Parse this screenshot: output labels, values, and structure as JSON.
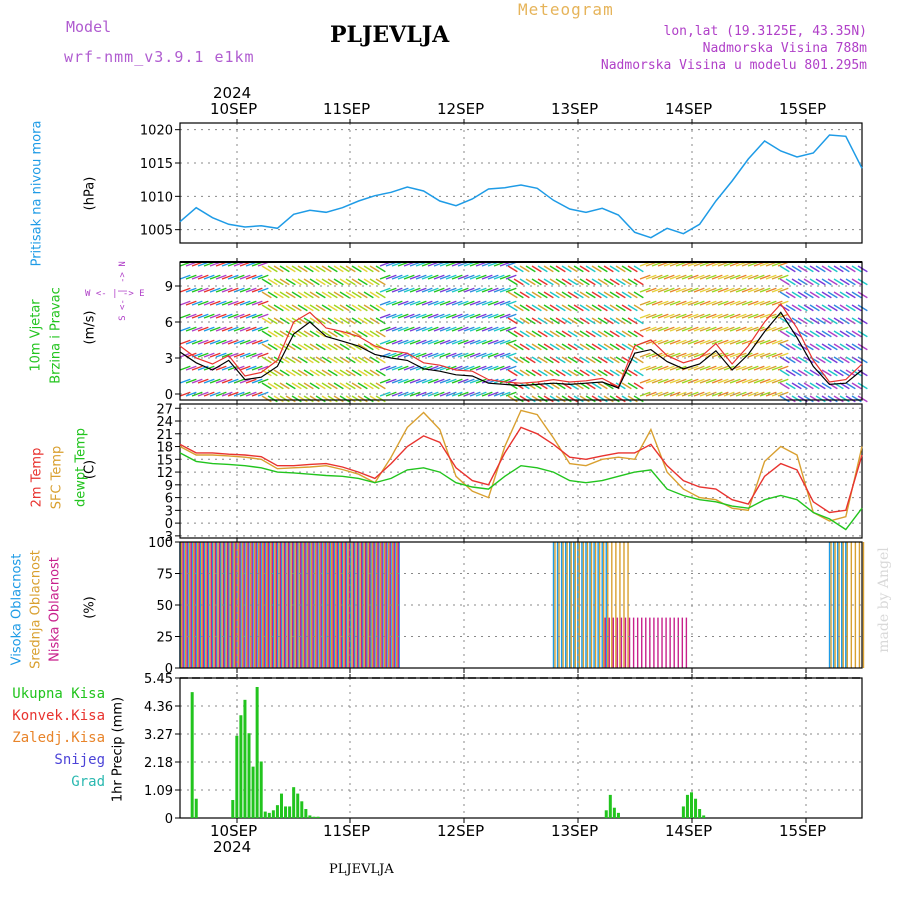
{
  "header": {
    "model_label": "Model",
    "model_value": "wrf-nmm_v3.9.1 e1km",
    "station": "PLJEVLJA",
    "meteogram": "Meteogram",
    "lonlat": "lon,lat (19.3125E, 43.35N)",
    "altitude": "Nadmorska Visina 788m",
    "model_altitude": "Nadmorska Visina u modelu 801.295m"
  },
  "footer": {
    "station": "PLJEVLJA",
    "credit": "made by Angel"
  },
  "axis": {
    "year": "2024",
    "days": [
      "10SEP",
      "11SEP",
      "12SEP",
      "13SEP",
      "14SEP",
      "15SEP"
    ]
  },
  "panels": {
    "pressure": {
      "title": "Pritisak na nivou mora",
      "unit": "(hPa)",
      "ticks": [
        "1020",
        "1015",
        "1010",
        "1005"
      ]
    },
    "wind": {
      "title1": "10m Vjetar",
      "title2": "Brzina i Pravac",
      "unit": "(m/s)",
      "compass": "W <- | -> E",
      "compass_ns": "S <- | -> N",
      "ticks": [
        "9",
        "6",
        "3",
        "0"
      ]
    },
    "temp": {
      "title1": "2m Temp",
      "title2": "SFC Temp",
      "title3": "dewpt Temp",
      "unit": "(C)",
      "ticks": [
        "27",
        "24",
        "21",
        "18",
        "15",
        "12",
        "9",
        "6",
        "3",
        "0",
        "-3"
      ]
    },
    "cloud": {
      "title1": "Visoka Oblacnost",
      "title2": "Srednja Oblacnost",
      "title3": "Niska Oblacnost",
      "unit": "(%)",
      "ticks": [
        "100",
        "75",
        "50",
        "25",
        "0"
      ]
    },
    "precip": {
      "legend": [
        "Ukupna Kisa",
        "Konvek.Kisa",
        "Zaledj.Kisa",
        "Snijeg",
        "Grad"
      ],
      "unit": "1hr Precip (mm)",
      "ticks": [
        "5.45",
        "4.36",
        "3.27",
        "2.18",
        "1.09",
        "0"
      ]
    }
  },
  "colors": {
    "pressure": "#1e9be6",
    "t2m": "#e8332f",
    "tsfc": "#d9a030",
    "dewpt": "#22c41e",
    "cloud_high": "#1e9be6",
    "cloud_mid": "#d9a030",
    "cloud_low": "#c8208c",
    "precip_total": "#22c41e",
    "precip_conv": "#e8332f",
    "precip_frz": "#e8842a",
    "precip_snow": "#4c44d8",
    "precip_grad": "#2ab8b0",
    "model_title": "#b05cd0",
    "meteogram_title": "#e6b45a",
    "info_text": "#b040c8"
  },
  "chart_data": [
    {
      "type": "line",
      "title": "Pritisak na nivou mora",
      "ylabel": "(hPa)",
      "ylim": [
        1003,
        1021
      ],
      "x_hours": [
        0,
        4,
        8,
        12,
        16,
        20,
        24,
        28,
        32,
        36,
        40,
        44,
        48,
        52,
        56,
        60,
        64,
        68,
        72,
        76,
        80,
        84,
        88,
        92,
        96,
        100,
        104,
        108,
        112,
        116,
        120,
        124,
        128,
        132,
        136,
        140,
        144,
        148,
        152,
        156,
        160,
        164,
        168
      ],
      "series": [
        {
          "values": [
            1006.2,
            1008.3,
            1006.8,
            1005.8,
            1005.4,
            1005.6,
            1005.2,
            1007.3,
            1007.9,
            1007.6,
            1008.3,
            1009.3,
            1010.1,
            1010.6,
            1011.4,
            1010.8,
            1009.3,
            1008.6,
            1009.6,
            1011.1,
            1011.3,
            1011.7,
            1011.2,
            1009.4,
            1008.1,
            1007.6,
            1008.2,
            1007.2,
            1004.6,
            1003.8,
            1005.2,
            1004.4,
            1005.8,
            1009.3,
            1012.3,
            1015.6,
            1018.3,
            1016.8,
            1015.9,
            1016.5,
            1019.2,
            1019.0,
            1014.2
          ]
        }
      ]
    },
    {
      "type": "line",
      "title": "10m Vjetar Brzina i Pravac",
      "ylabel": "(m/s)",
      "ylim": [
        -0.5,
        11
      ],
      "x_hours": [
        0,
        4,
        8,
        12,
        16,
        20,
        24,
        28,
        32,
        36,
        40,
        44,
        48,
        52,
        56,
        60,
        64,
        68,
        72,
        76,
        80,
        84,
        88,
        92,
        96,
        100,
        104,
        108,
        112,
        116,
        120,
        124,
        128,
        132,
        136,
        140,
        144,
        148,
        152,
        156,
        160,
        164,
        168
      ],
      "series": [
        {
          "values": [
            4.0,
            3.0,
            2.5,
            3.2,
            1.5,
            1.8,
            2.8,
            6.0,
            6.8,
            5.5,
            5.2,
            4.8,
            4.0,
            3.6,
            3.4,
            2.6,
            2.4,
            2.0,
            1.9,
            1.2,
            1.0,
            0.9,
            1.0,
            1.2,
            1.0,
            1.1,
            1.3,
            0.6,
            4.0,
            4.5,
            3.2,
            2.6,
            3.0,
            4.2,
            2.5,
            4.0,
            6.0,
            7.5,
            5.5,
            2.8,
            1.0,
            1.2,
            2.5
          ]
        },
        {
          "values": [
            3.5,
            2.6,
            2.0,
            2.8,
            1.2,
            1.4,
            2.3,
            5.0,
            6.0,
            4.8,
            4.4,
            4.0,
            3.3,
            3.0,
            2.8,
            2.1,
            1.9,
            1.6,
            1.5,
            0.9,
            0.8,
            0.7,
            0.8,
            0.9,
            0.8,
            0.9,
            1.0,
            0.5,
            3.4,
            3.7,
            2.7,
            2.1,
            2.5,
            3.6,
            2.0,
            3.3,
            5.2,
            6.8,
            4.7,
            2.3,
            0.8,
            0.9,
            2.0
          ]
        }
      ]
    },
    {
      "type": "line",
      "title": "2m Temp / SFC Temp / dewpt Temp",
      "ylabel": "(C)",
      "ylim": [
        -3.5,
        28
      ],
      "x_hours": [
        0,
        4,
        8,
        12,
        16,
        20,
        24,
        28,
        32,
        36,
        40,
        44,
        48,
        52,
        56,
        60,
        64,
        68,
        72,
        76,
        80,
        84,
        88,
        92,
        96,
        100,
        104,
        108,
        112,
        116,
        120,
        124,
        128,
        132,
        136,
        140,
        144,
        148,
        152,
        156,
        160,
        164,
        168
      ],
      "series": [
        {
          "name": "2m Temp",
          "values": [
            18.5,
            16.5,
            16.5,
            16.2,
            16.0,
            15.6,
            13.5,
            13.5,
            13.8,
            14.0,
            13.2,
            12.0,
            10.5,
            14.0,
            18.0,
            20.5,
            19.0,
            13.0,
            10.0,
            9.0,
            16.5,
            22.5,
            21.0,
            18.5,
            15.5,
            15.0,
            15.8,
            16.5,
            16.5,
            18.5,
            13.5,
            10.0,
            8.5,
            8.0,
            5.5,
            4.5,
            11.0,
            14.0,
            12.5,
            5.0,
            2.5,
            3.0,
            16.0
          ]
        },
        {
          "name": "SFC Temp",
          "values": [
            18.0,
            16.0,
            16.0,
            15.8,
            15.5,
            15.0,
            12.8,
            13.0,
            13.2,
            13.5,
            12.6,
            11.5,
            9.5,
            15.5,
            22.5,
            26.0,
            22.0,
            11.0,
            7.5,
            6.0,
            18.0,
            26.5,
            25.5,
            20.0,
            14.0,
            13.5,
            15.0,
            15.5,
            15.0,
            22.0,
            12.0,
            8.0,
            6.0,
            5.5,
            3.5,
            3.0,
            14.5,
            18.0,
            16.0,
            2.5,
            0.5,
            1.5,
            18.0
          ]
        },
        {
          "name": "dewpt Temp",
          "values": [
            16.5,
            14.5,
            14.0,
            13.8,
            13.5,
            13.0,
            12.0,
            11.8,
            11.5,
            11.2,
            11.0,
            10.5,
            9.5,
            10.5,
            12.5,
            13.0,
            12.0,
            9.5,
            8.5,
            8.0,
            11.0,
            13.5,
            13.0,
            12.0,
            10.0,
            9.5,
            10.0,
            11.0,
            12.0,
            12.5,
            8.0,
            6.5,
            5.5,
            5.0,
            4.0,
            3.5,
            5.5,
            6.5,
            5.5,
            2.5,
            1.0,
            -1.5,
            3.5
          ]
        }
      ]
    },
    {
      "type": "bar",
      "title": "Oblacnost",
      "ylabel": "(%)",
      "ylim": [
        0,
        100
      ],
      "segments": [
        {
          "series": "Srednja Oblacnost",
          "from_hour": 0,
          "to_hour": 53,
          "value": 100
        },
        {
          "series": "Visoka Oblacnost",
          "from_hour": 0,
          "to_hour": 54,
          "value": 100
        },
        {
          "series": "Niska Oblacnost",
          "from_hour": 0,
          "to_hour": 53,
          "value": 100
        },
        {
          "series": "Srednja Oblacnost",
          "from_hour": 92,
          "to_hour": 110,
          "value": 100
        },
        {
          "series": "Visoka Oblacnost",
          "from_hour": 92,
          "to_hour": 105,
          "value": 100
        },
        {
          "series": "Niska Oblacnost",
          "from_hour": 104,
          "to_hour": 124,
          "value": 40
        },
        {
          "series": "Srednja Oblacnost",
          "from_hour": 160,
          "to_hour": 168,
          "value": 100
        },
        {
          "series": "Visoka Oblacnost",
          "from_hour": 160,
          "to_hour": 164,
          "value": 100
        }
      ]
    },
    {
      "type": "bar",
      "title": "1hr Precip (mm)",
      "ylabel": "1hr Precip (mm)",
      "ylim": [
        0,
        5.45
      ],
      "x_hours": [
        3,
        4,
        13,
        14,
        15,
        16,
        17,
        18,
        19,
        20,
        21,
        22,
        23,
        24,
        25,
        26,
        27,
        28,
        29,
        30,
        31,
        32,
        33,
        34,
        105,
        106,
        107,
        108,
        124,
        125,
        126,
        127,
        128,
        129
      ],
      "series": [
        {
          "name": "Ukupna Kisa",
          "values": [
            4.9,
            0.75,
            0.7,
            3.2,
            4.0,
            4.6,
            3.3,
            2.0,
            5.1,
            2.2,
            0.25,
            0.2,
            0.3,
            0.5,
            0.95,
            0.45,
            0.45,
            1.2,
            0.95,
            0.65,
            0.35,
            0.1,
            0.05,
            0.05,
            0.3,
            0.9,
            0.4,
            0.2,
            0.45,
            0.9,
            1.0,
            0.75,
            0.35,
            0.1
          ]
        }
      ]
    }
  ]
}
